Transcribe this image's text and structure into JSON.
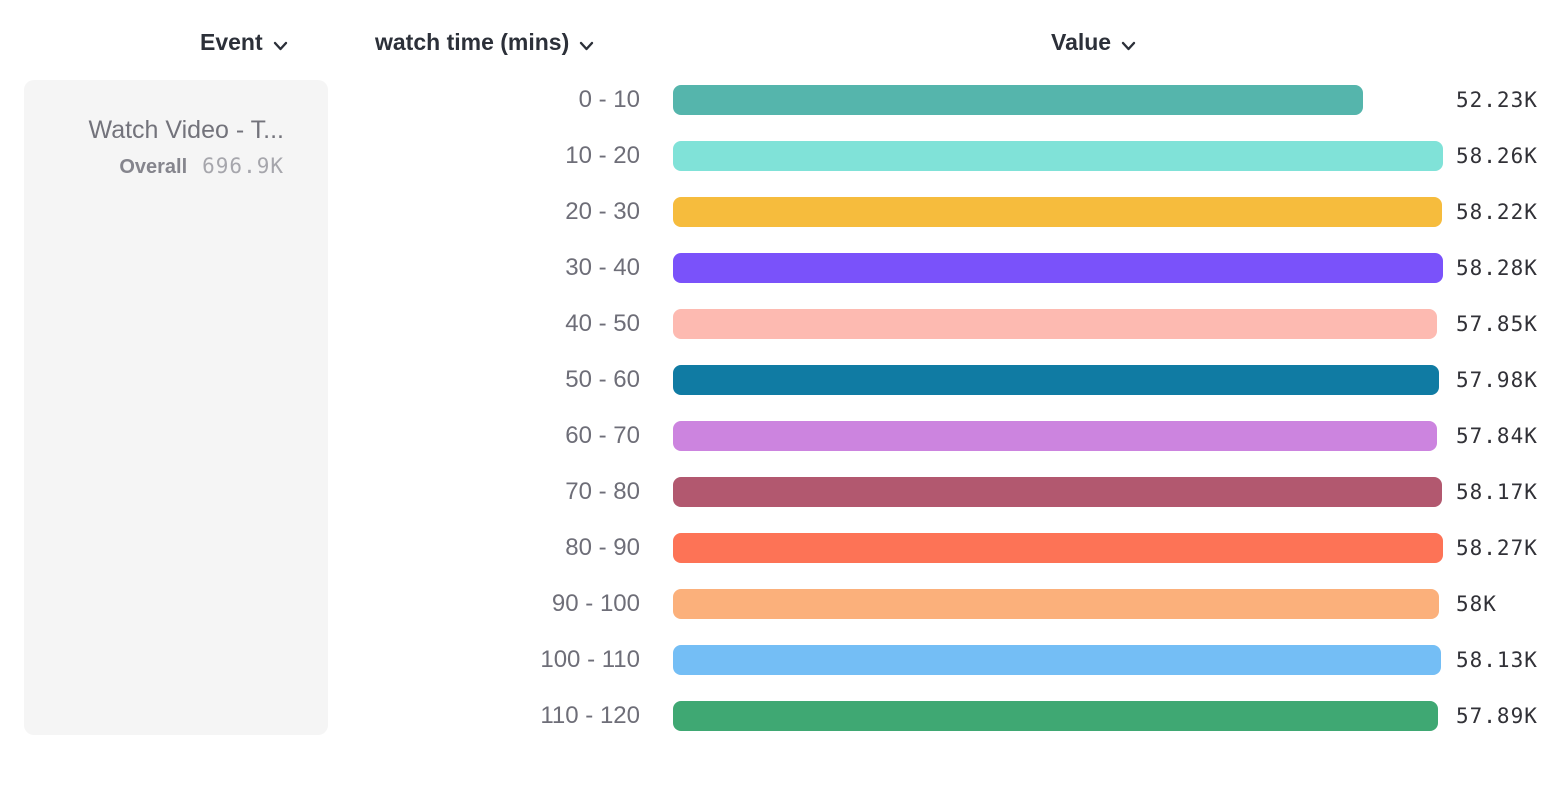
{
  "header": {
    "event_label": "Event",
    "breakdown_label": "watch time (mins)",
    "value_label": "Value"
  },
  "legend": {
    "event_name": "Watch Video - T...",
    "overall_label": "Overall",
    "overall_value": "696.9K"
  },
  "chart_data": {
    "type": "bar",
    "orientation": "horizontal",
    "title": "",
    "xlabel": "Value",
    "ylabel": "watch time (mins)",
    "xlim": [
      0,
      58280
    ],
    "grid": false,
    "categories": [
      "0 - 10",
      "10 - 20",
      "20 - 30",
      "30 - 40",
      "40 - 50",
      "50 - 60",
      "60 - 70",
      "70 - 80",
      "80 - 90",
      "90 - 100",
      "100 - 110",
      "110 - 120"
    ],
    "values": [
      52230,
      58260,
      58220,
      58280,
      57850,
      57980,
      57840,
      58170,
      58270,
      58000,
      58130,
      57890
    ],
    "value_labels": [
      "52.23K",
      "58.26K",
      "58.22K",
      "58.28K",
      "57.85K",
      "57.98K",
      "57.84K",
      "58.17K",
      "58.27K",
      "58K",
      "58.13K",
      "57.89K"
    ],
    "bar_colors": [
      "#55B5AC",
      "#80E2D8",
      "#F6BC3D",
      "#7A52FA",
      "#FDBAB1",
      "#107BA3",
      "#CC84DF",
      "#B2586F",
      "#FD7356",
      "#FBB07B",
      "#74BEF5",
      "#3FA873"
    ]
  },
  "icons": {
    "chevron_down": "chevron-down"
  },
  "colors": {
    "header_text": "#2c3039",
    "label_text": "#6e6e78",
    "value_text": "#313137",
    "card_bg": "#f5f5f5"
  }
}
